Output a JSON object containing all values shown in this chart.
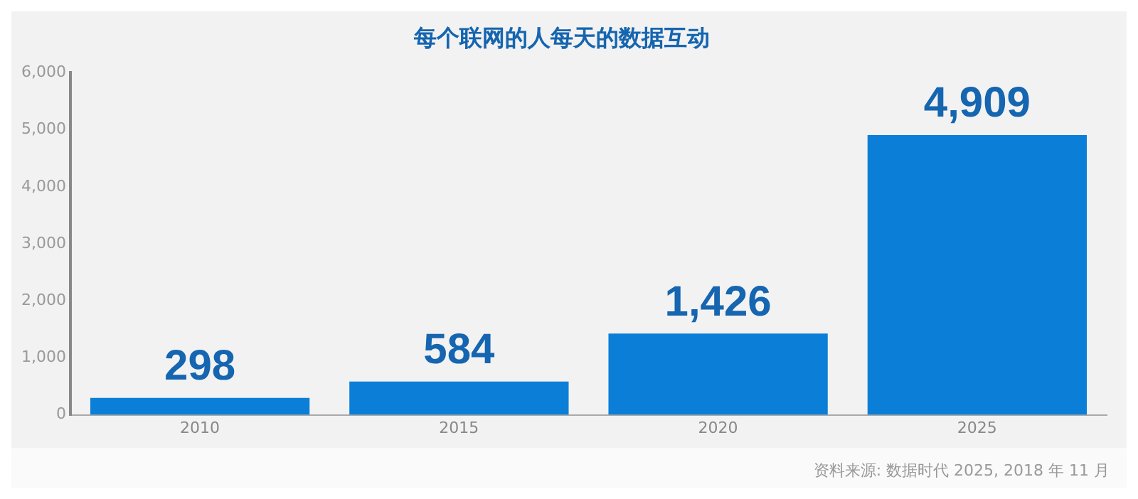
{
  "chart_data": {
    "type": "bar",
    "title": "每个联网的人每天的数据互动",
    "categories": [
      "2010",
      "2015",
      "2020",
      "2025"
    ],
    "values": [
      298,
      584,
      1426,
      4909
    ],
    "color": "#0b7fd8",
    "value_labels": [
      "298",
      "584",
      "1,426",
      "4,909"
    ],
    "ylim": [
      0,
      6000
    ],
    "yticks": [
      {
        "value": 0,
        "label": "0"
      },
      {
        "value": 1000,
        "label": "1,000"
      },
      {
        "value": 2000,
        "label": "2,000"
      },
      {
        "value": 3000,
        "label": "3,000"
      },
      {
        "value": 4000,
        "label": "4,000"
      },
      {
        "value": 5000,
        "label": "5,000"
      },
      {
        "value": 6000,
        "label": "6,000"
      }
    ],
    "grid": false,
    "legend": false,
    "annotations": [
      "资料来源: 数据时代 2025, 2018 年 11 月"
    ]
  }
}
